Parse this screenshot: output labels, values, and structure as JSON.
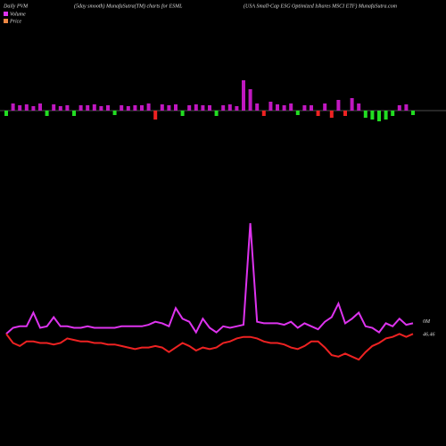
{
  "chart_data": [
    {
      "type": "bar",
      "title": "Daily PVM",
      "subtitle": "(5day smooth) MunafaSutra(TM) charts for ESML",
      "source": "(USA Small-Cap ESG Optimized Ishares MSCI ETF) MunafaSutra.com",
      "ylim": [
        -15,
        40
      ],
      "values": [
        -6,
        8,
        6,
        7,
        5,
        8,
        -6,
        7,
        5,
        6,
        -6,
        6,
        6,
        7,
        5,
        6,
        -5,
        6,
        5,
        6,
        6,
        8,
        -10,
        7,
        6,
        7,
        -6,
        6,
        7,
        6,
        6,
        -6,
        6,
        7,
        5,
        34,
        24,
        8,
        -6,
        10,
        7,
        6,
        8,
        -5,
        6,
        6,
        -6,
        8,
        -8,
        12,
        -6,
        14,
        8,
        -8,
        -10,
        -12,
        -10,
        -6,
        6,
        7,
        -5
      ],
      "colors": [
        "#22dd22",
        "#c018c0",
        "#c018c0",
        "#c018c0",
        "#c018c0",
        "#c018c0",
        "#22dd22",
        "#c018c0",
        "#c018c0",
        "#c018c0",
        "#22dd22",
        "#c018c0",
        "#c018c0",
        "#c018c0",
        "#c018c0",
        "#c018c0",
        "#22dd22",
        "#c018c0",
        "#c018c0",
        "#c018c0",
        "#c018c0",
        "#c018c0",
        "#ee2222",
        "#c018c0",
        "#c018c0",
        "#c018c0",
        "#22dd22",
        "#c018c0",
        "#c018c0",
        "#c018c0",
        "#c018c0",
        "#22dd22",
        "#c018c0",
        "#c018c0",
        "#c018c0",
        "#c018c0",
        "#c018c0",
        "#c018c0",
        "#ee2222",
        "#c018c0",
        "#c018c0",
        "#c018c0",
        "#c018c0",
        "#22dd22",
        "#c018c0",
        "#c018c0",
        "#ee2222",
        "#c018c0",
        "#ee2222",
        "#c018c0",
        "#ee2222",
        "#c018c0",
        "#c018c0",
        "#22dd22",
        "#22dd22",
        "#22dd22",
        "#22dd22",
        "#22dd22",
        "#c018c0",
        "#c018c0",
        "#22dd22"
      ]
    },
    {
      "type": "line",
      "ylim": [
        0,
        100
      ],
      "volume_label": "0M",
      "price_label": "46.46",
      "series": [
        {
          "name": "Volume",
          "color": "#dd33ee",
          "values": [
            21,
            25,
            26,
            26,
            35,
            25,
            26,
            32,
            26,
            26,
            25,
            25,
            26,
            25,
            25,
            25,
            25,
            26,
            26,
            26,
            26,
            27,
            29,
            28,
            26,
            38,
            31,
            29,
            22,
            31,
            25,
            22,
            26,
            25,
            26,
            27,
            94,
            29,
            28,
            28,
            28,
            27,
            29,
            25,
            28,
            26,
            24,
            29,
            32,
            41,
            28,
            31,
            35,
            26,
            25,
            22,
            28,
            26,
            31,
            27,
            28
          ]
        },
        {
          "name": "Price",
          "color": "#ee2222",
          "values": [
            21,
            15,
            13,
            16,
            16,
            15,
            15,
            14,
            15,
            18,
            17,
            16,
            16,
            15,
            15,
            14,
            14,
            13,
            12,
            11,
            12,
            12,
            13,
            12,
            9,
            12,
            15,
            13,
            10,
            12,
            11,
            12,
            15,
            16,
            18,
            19,
            19,
            18,
            16,
            15,
            15,
            14,
            12,
            11,
            13,
            16,
            16,
            12,
            7,
            6,
            8,
            6,
            4,
            9,
            13,
            15,
            18,
            19,
            21,
            19,
            21
          ]
        }
      ]
    }
  ]
}
